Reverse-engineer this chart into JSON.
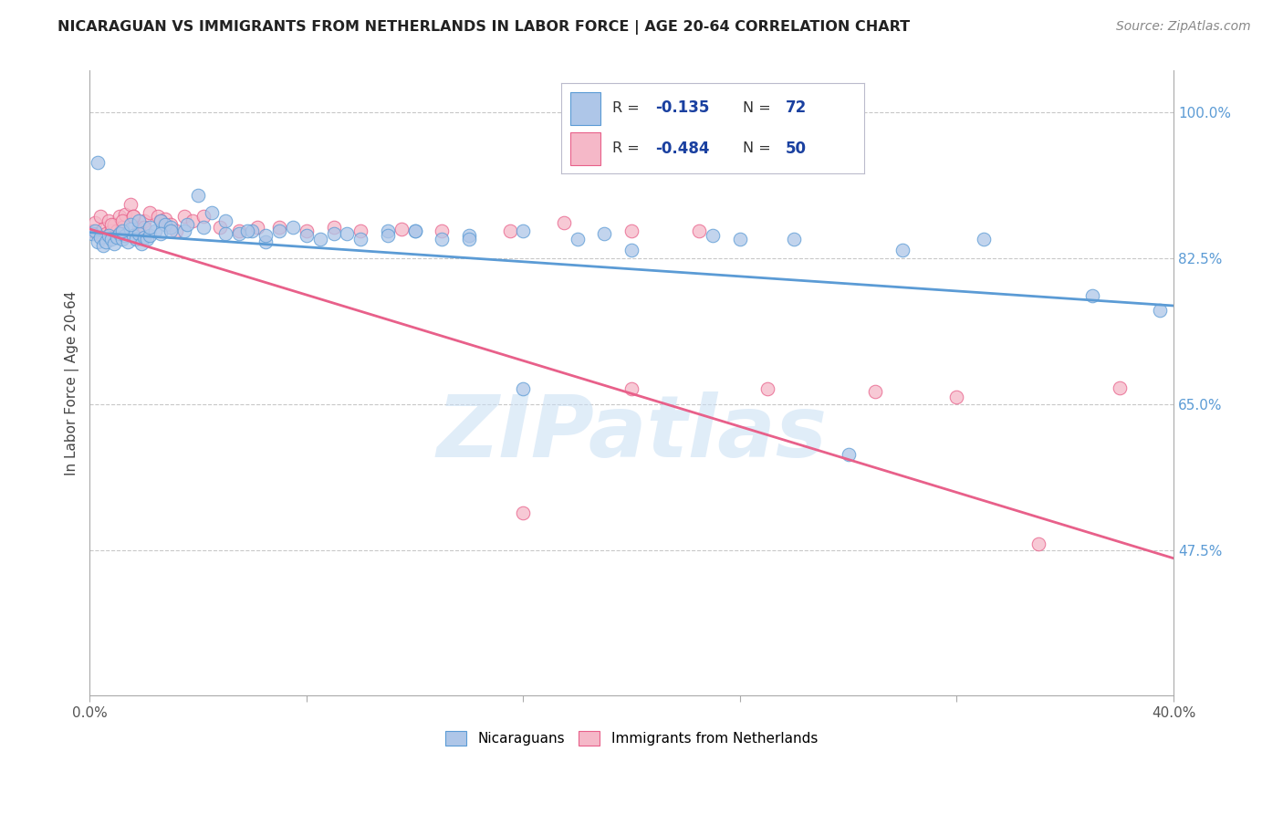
{
  "title": "NICARAGUAN VS IMMIGRANTS FROM NETHERLANDS IN LABOR FORCE | AGE 20-64 CORRELATION CHART",
  "source": "Source: ZipAtlas.com",
  "ylabel": "In Labor Force | Age 20-64",
  "xlim": [
    0.0,
    0.4
  ],
  "ylim": [
    0.3,
    1.05
  ],
  "xticks": [
    0.0,
    0.08,
    0.16,
    0.24,
    0.32,
    0.4
  ],
  "xtick_labels": [
    "0.0%",
    "",
    "",
    "",
    "",
    "40.0%"
  ],
  "ytick_labels_right": [
    "100.0%",
    "82.5%",
    "65.0%",
    "47.5%"
  ],
  "yticks_right": [
    1.0,
    0.825,
    0.65,
    0.475
  ],
  "blue_color": "#aec6e8",
  "pink_color": "#f5b8c8",
  "blue_line_color": "#5b9bd5",
  "pink_line_color": "#e8608a",
  "blue_scatter_x": [
    0.001,
    0.002,
    0.003,
    0.004,
    0.005,
    0.006,
    0.007,
    0.008,
    0.009,
    0.01,
    0.011,
    0.012,
    0.013,
    0.014,
    0.015,
    0.016,
    0.017,
    0.018,
    0.019,
    0.02,
    0.021,
    0.022,
    0.024,
    0.026,
    0.028,
    0.03,
    0.035,
    0.04,
    0.045,
    0.05,
    0.055,
    0.06,
    0.065,
    0.07,
    0.08,
    0.09,
    0.1,
    0.11,
    0.12,
    0.13,
    0.14,
    0.16,
    0.18,
    0.2,
    0.23,
    0.26,
    0.3,
    0.33,
    0.012,
    0.015,
    0.018,
    0.022,
    0.026,
    0.03,
    0.036,
    0.042,
    0.05,
    0.058,
    0.065,
    0.075,
    0.085,
    0.095,
    0.11,
    0.12,
    0.14,
    0.16,
    0.19,
    0.24,
    0.28,
    0.37,
    0.395,
    0.003
  ],
  "blue_scatter_y": [
    0.855,
    0.858,
    0.845,
    0.85,
    0.84,
    0.845,
    0.852,
    0.848,
    0.842,
    0.85,
    0.855,
    0.848,
    0.852,
    0.845,
    0.86,
    0.852,
    0.848,
    0.855,
    0.842,
    0.85,
    0.848,
    0.852,
    0.858,
    0.87,
    0.865,
    0.862,
    0.858,
    0.9,
    0.88,
    0.87,
    0.855,
    0.858,
    0.845,
    0.858,
    0.852,
    0.855,
    0.848,
    0.858,
    0.858,
    0.848,
    0.852,
    0.858,
    0.848,
    0.835,
    0.852,
    0.848,
    0.835,
    0.848,
    0.858,
    0.865,
    0.87,
    0.862,
    0.855,
    0.858,
    0.865,
    0.862,
    0.855,
    0.858,
    0.852,
    0.862,
    0.848,
    0.855,
    0.852,
    0.858,
    0.848,
    0.668,
    0.855,
    0.848,
    0.59,
    0.78,
    0.762,
    0.94
  ],
  "pink_scatter_x": [
    0.001,
    0.002,
    0.003,
    0.004,
    0.005,
    0.006,
    0.007,
    0.008,
    0.009,
    0.01,
    0.011,
    0.012,
    0.013,
    0.015,
    0.016,
    0.018,
    0.02,
    0.022,
    0.025,
    0.028,
    0.03,
    0.035,
    0.038,
    0.042,
    0.048,
    0.055,
    0.062,
    0.07,
    0.08,
    0.09,
    0.1,
    0.115,
    0.13,
    0.155,
    0.175,
    0.2,
    0.225,
    0.25,
    0.29,
    0.32,
    0.35,
    0.38,
    0.16,
    0.2,
    0.008,
    0.012,
    0.016,
    0.02,
    0.026,
    0.032
  ],
  "pink_scatter_y": [
    0.858,
    0.868,
    0.855,
    0.875,
    0.86,
    0.855,
    0.87,
    0.858,
    0.865,
    0.858,
    0.875,
    0.862,
    0.878,
    0.89,
    0.875,
    0.862,
    0.87,
    0.88,
    0.875,
    0.872,
    0.865,
    0.875,
    0.87,
    0.875,
    0.862,
    0.858,
    0.862,
    0.862,
    0.858,
    0.862,
    0.858,
    0.86,
    0.858,
    0.858,
    0.868,
    0.858,
    0.858,
    0.668,
    0.665,
    0.658,
    0.482,
    0.67,
    0.52,
    0.668,
    0.865,
    0.87,
    0.875,
    0.862,
    0.87,
    0.858
  ],
  "blue_trend_x": [
    0.0,
    0.4
  ],
  "blue_trend_y": [
    0.856,
    0.768
  ],
  "pink_trend_x": [
    0.0,
    0.4
  ],
  "pink_trend_y": [
    0.86,
    0.465
  ],
  "legend_blue_R_val": "-0.135",
  "legend_blue_N_val": "72",
  "legend_pink_R_val": "-0.484",
  "legend_pink_N_val": "50",
  "watermark": "ZIPatlas",
  "legend_label_blue": "Nicaraguans",
  "legend_label_pink": "Immigrants from Netherlands",
  "background_color": "#ffffff",
  "grid_color": "#c8c8c8",
  "title_color": "#222222",
  "source_color": "#888888",
  "ylabel_color": "#444444",
  "tick_color": "#555555",
  "right_tick_color": "#5b9bd5",
  "legend_text_color": "#333333",
  "legend_val_color": "#1a40a0"
}
